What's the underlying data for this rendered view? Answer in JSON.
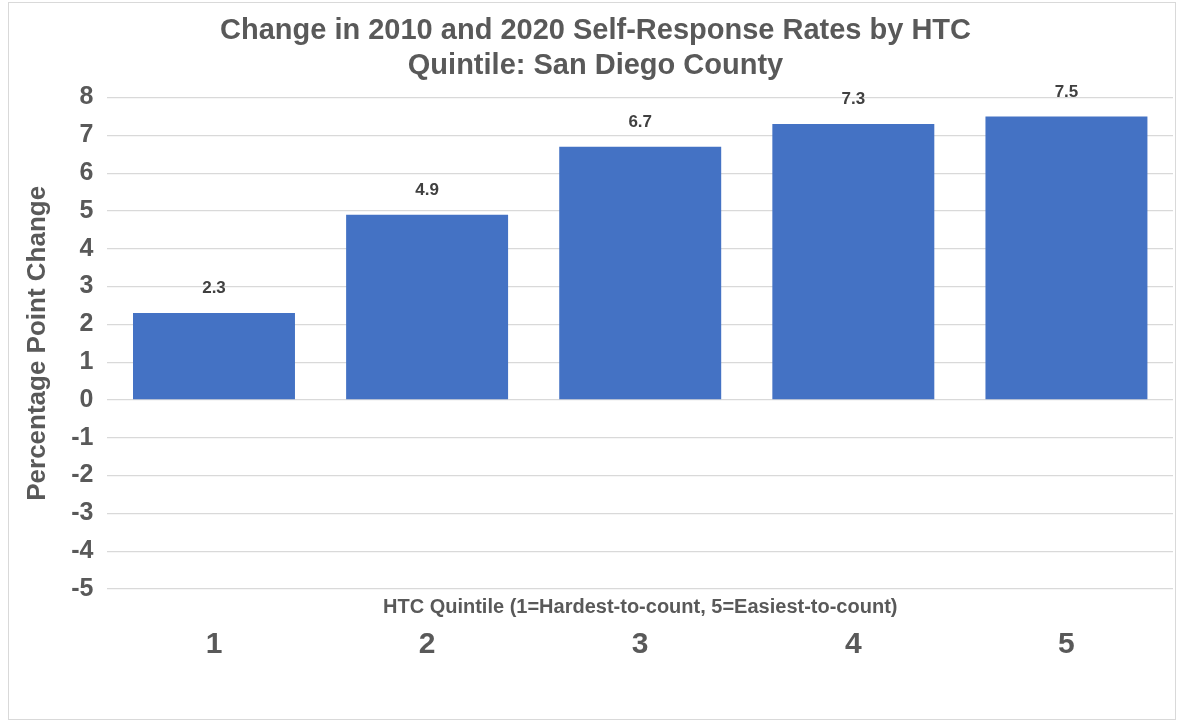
{
  "chart_data": {
    "type": "bar",
    "title": "Change in 2010 and 2020 Self-Response Rates by HTC Quintile: San Diego County",
    "xlabel": "HTC Quintile (1=Hardest-to-count, 5=Easiest-to-count)",
    "ylabel": "Percentage Point Change",
    "categories": [
      "1",
      "2",
      "3",
      "4",
      "5"
    ],
    "values": [
      2.3,
      4.9,
      6.7,
      7.3,
      7.5
    ],
    "color": "#4472c4",
    "ylim": [
      -5,
      8
    ],
    "yticks": [
      -5,
      -4,
      -3,
      -2,
      -1,
      0,
      1,
      2,
      3,
      4,
      5,
      6,
      7,
      8
    ],
    "grid": "y",
    "data_labels": true,
    "legend": false
  }
}
